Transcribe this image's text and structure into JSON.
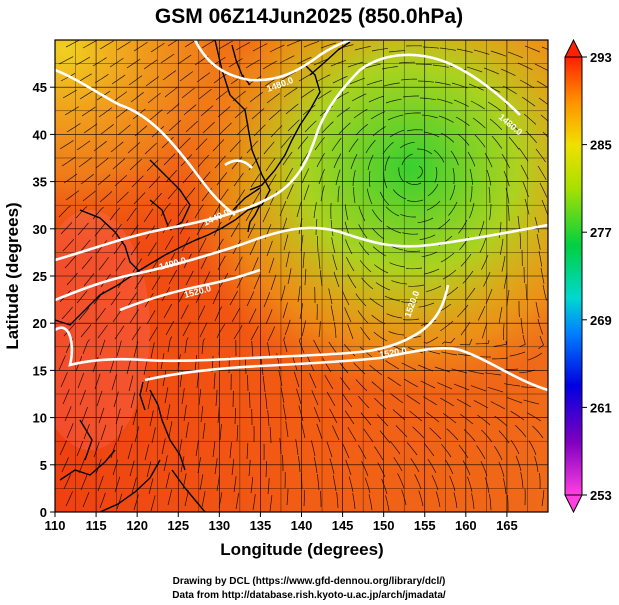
{
  "title": "GSM 06Z14Jun2025 (850.0hPa)",
  "xlabel": "Longitude (degrees)",
  "ylabel": "Latitude (degrees)",
  "credits": [
    "Drawing by DCL (https://www.gfd-dennou.org/library/dcl/)",
    "Data from http://database.rish.kyoto-u.ac.jp/arch/jmadata/"
  ],
  "chart_data": {
    "type": "heatmap",
    "variable": "850hPa temperature (shaded), geopotential height (contours), wind (streamlines)",
    "xlim": [
      110,
      170
    ],
    "ylim": [
      0,
      50
    ],
    "x_ticks": [
      "110",
      "115",
      "120",
      "125",
      "130",
      "135",
      "140",
      "145",
      "150",
      "155",
      "160",
      "165"
    ],
    "y_ticks": [
      "0",
      "5",
      "10",
      "15",
      "20",
      "25",
      "30",
      "35",
      "40",
      "45"
    ],
    "colorbar": {
      "min": 253,
      "max": 293,
      "ticks": [
        "293",
        "285",
        "277",
        "269",
        "261",
        "253"
      ]
    },
    "contour_labels": [
      "1480.0",
      "1440.0",
      "1400.0",
      "1520.0",
      "1480.0",
      "1520.0",
      "1520.0"
    ],
    "features": {
      "cyclone_center": {
        "lon": 154,
        "lat": 37
      },
      "warm_core_lon_range": [
        110,
        135
      ],
      "cool_region": {
        "lon": [
          145,
          170
        ],
        "lat": [
          30,
          50
        ]
      }
    }
  }
}
